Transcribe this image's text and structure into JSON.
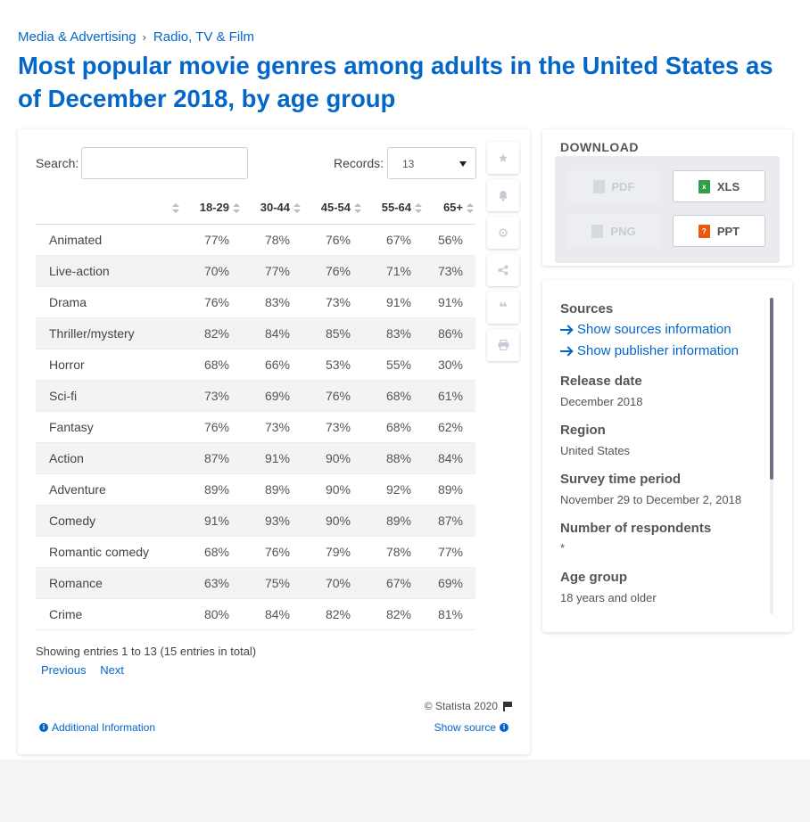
{
  "breadcrumb": [
    {
      "label": "Media & Advertising"
    },
    {
      "label": "Radio, TV & Film"
    }
  ],
  "breadcrumb_sep": "›",
  "title": "Most popular movie genres among adults in the United States as of December 2018, by age group",
  "search": {
    "label": "Search:",
    "placeholder": ""
  },
  "records": {
    "label": "Records:",
    "value": "13"
  },
  "table": {
    "columns": [
      "",
      "18-29",
      "30-44",
      "45-54",
      "55-64",
      "65+"
    ],
    "rows": [
      [
        "Animated",
        "77%",
        "78%",
        "76%",
        "67%",
        "56%"
      ],
      [
        "Live-action",
        "70%",
        "77%",
        "76%",
        "71%",
        "73%"
      ],
      [
        "Drama",
        "76%",
        "83%",
        "73%",
        "91%",
        "91%"
      ],
      [
        "Thriller/mystery",
        "82%",
        "84%",
        "85%",
        "83%",
        "86%"
      ],
      [
        "Horror",
        "68%",
        "66%",
        "53%",
        "55%",
        "30%"
      ],
      [
        "Sci-fi",
        "73%",
        "69%",
        "76%",
        "68%",
        "61%"
      ],
      [
        "Fantasy",
        "76%",
        "73%",
        "73%",
        "68%",
        "62%"
      ],
      [
        "Action",
        "87%",
        "91%",
        "90%",
        "88%",
        "84%"
      ],
      [
        "Adventure",
        "89%",
        "89%",
        "90%",
        "92%",
        "89%"
      ],
      [
        "Comedy",
        "91%",
        "93%",
        "90%",
        "89%",
        "87%"
      ],
      [
        "Romantic comedy",
        "68%",
        "76%",
        "79%",
        "78%",
        "77%"
      ],
      [
        "Romance",
        "63%",
        "75%",
        "70%",
        "67%",
        "69%"
      ],
      [
        "Crime",
        "80%",
        "84%",
        "82%",
        "82%",
        "81%"
      ]
    ]
  },
  "entries_text": "Showing entries 1 to 13 (15 entries in total)",
  "pager": {
    "previous": "Previous",
    "next": "Next"
  },
  "copyright": "© Statista 2020",
  "additional_info": "Additional Information",
  "show_source": "Show source",
  "toolbar_icons": [
    "star-icon",
    "bell-icon",
    "gear-icon",
    "share-icon",
    "quote-icon",
    "print-icon"
  ],
  "download": {
    "title": "DOWNLOAD",
    "pdf": "PDF",
    "xls": "XLS",
    "png": "PNG",
    "ppt": "PPT"
  },
  "meta": {
    "sources_heading": "Sources",
    "show_sources": "Show sources information",
    "show_publisher": "Show publisher information",
    "release_heading": "Release date",
    "release_value": "December 2018",
    "region_heading": "Region",
    "region_value": "United States",
    "survey_heading": "Survey time period",
    "survey_value": "November 29 to December 2, 2018",
    "respondents_heading": "Number of respondents",
    "respondents_value": "*",
    "age_heading": "Age group",
    "age_value": "18 years and older"
  },
  "colors": {
    "link": "#0466c8",
    "xls": "#2f9e44",
    "ppt": "#e8590c"
  }
}
